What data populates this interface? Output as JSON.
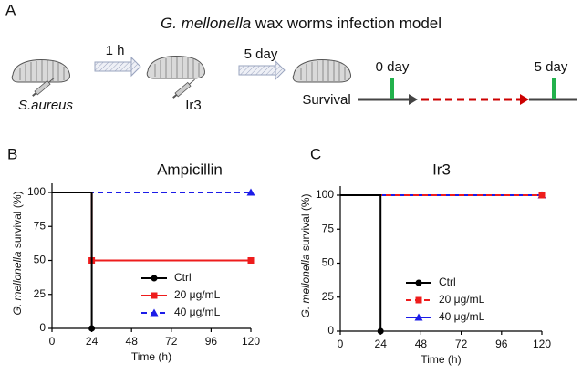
{
  "panel_a": {
    "label": "A",
    "title_italic": "G. mellonella",
    "title_rest": " wax worms infection model",
    "pathogen": "S.aureus",
    "step1_time": "1 h",
    "treatment": "Ir3",
    "step2_time": "5 day",
    "outcome": "Survival",
    "timeline_start": "0 day",
    "timeline_end": "5 day"
  },
  "chart_data": [
    {
      "type": "line",
      "panel": "B",
      "title": "Ampicillin",
      "ylabel_italic": "G. mellonella",
      "ylabel_rest": " survival (%)",
      "xlabel": "Time (h)",
      "xlim": [
        0,
        120
      ],
      "ylim": [
        0,
        100
      ],
      "xticks": [
        0,
        24,
        48,
        72,
        96,
        120
      ],
      "yticks": [
        0,
        25,
        50,
        75,
        100
      ],
      "legend": "lower right",
      "series": [
        {
          "name": "Ctrl",
          "color": "#000000",
          "marker": "circle",
          "dashed": false,
          "x": [
            0,
            24,
            24
          ],
          "values": [
            100,
            100,
            0
          ]
        },
        {
          "name": "20 μg/mL",
          "color": "#ee1c1c",
          "marker": "square",
          "dashed": false,
          "x": [
            0,
            24,
            24,
            120
          ],
          "values": [
            100,
            100,
            50,
            50
          ]
        },
        {
          "name": "40 μg/mL",
          "color": "#1c1ce8",
          "marker": "triangle",
          "dashed": true,
          "x": [
            0,
            120
          ],
          "values": [
            100,
            100
          ]
        }
      ]
    },
    {
      "type": "line",
      "panel": "C",
      "title": "Ir3",
      "ylabel_italic": "G. mellonella",
      "ylabel_rest": " survival (%)",
      "xlabel": "Time (h)",
      "xlim": [
        0,
        120
      ],
      "ylim": [
        0,
        100
      ],
      "xticks": [
        0,
        24,
        48,
        72,
        96,
        120
      ],
      "yticks": [
        0,
        25,
        50,
        75,
        100
      ],
      "legend": "lower right",
      "series": [
        {
          "name": "Ctrl",
          "color": "#000000",
          "marker": "circle",
          "dashed": false,
          "x": [
            0,
            24,
            24
          ],
          "values": [
            100,
            100,
            0
          ]
        },
        {
          "name": "20 μg/mL",
          "color": "#ee1c1c",
          "marker": "square",
          "dashed": true,
          "x": [
            0,
            120
          ],
          "values": [
            100,
            100
          ]
        },
        {
          "name": "40 μg/mL",
          "color": "#1c1ce8",
          "marker": "triangle",
          "dashed": false,
          "x": [
            0,
            120
          ],
          "values": [
            100,
            100
          ]
        }
      ]
    }
  ]
}
